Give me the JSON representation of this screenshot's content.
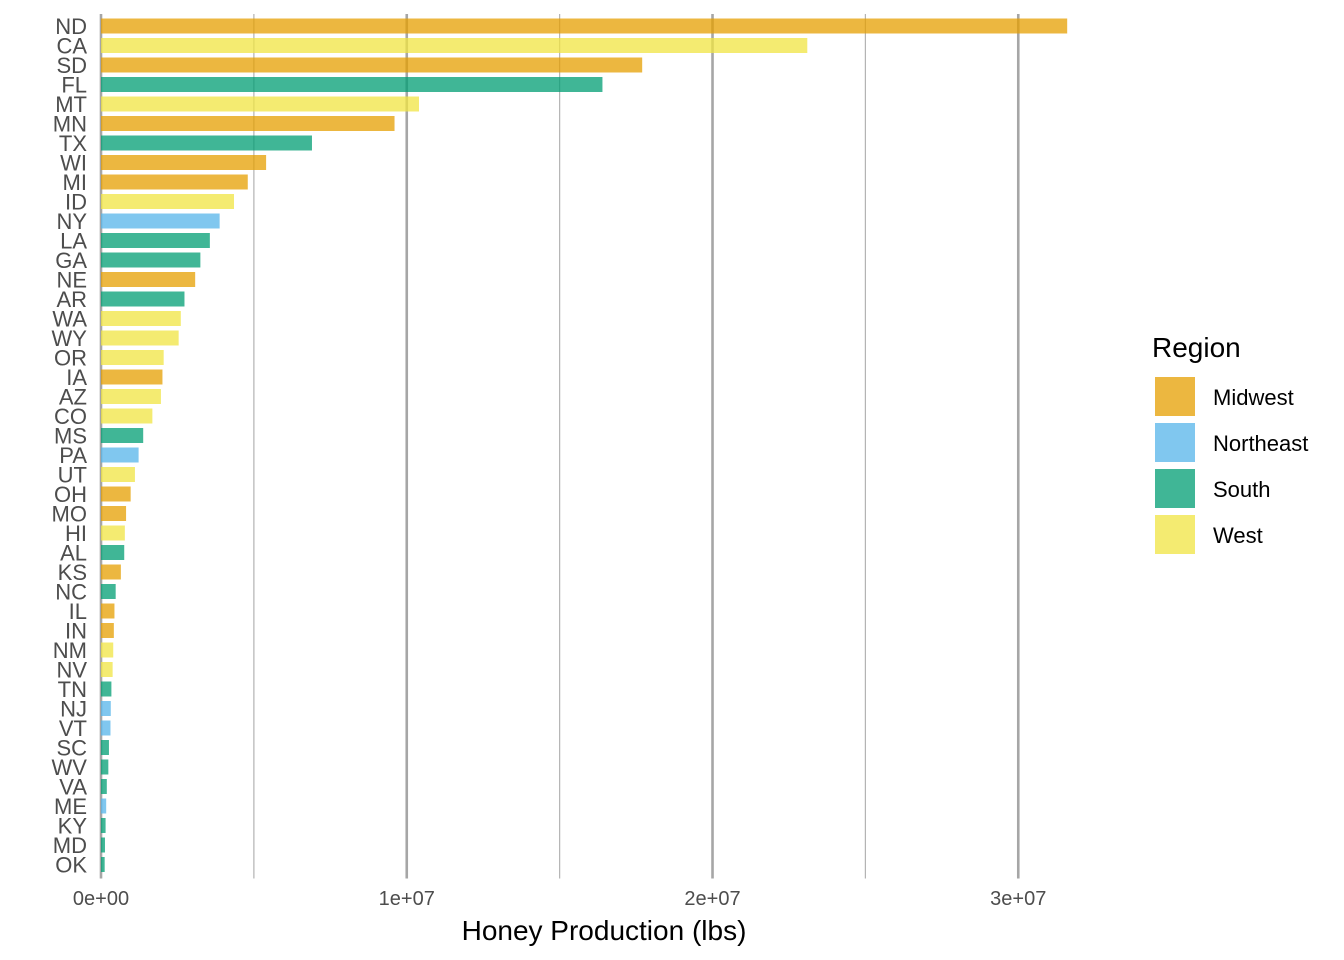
{
  "chart_data": {
    "type": "bar",
    "orientation": "horizontal",
    "xlabel": "Honey Production (lbs)",
    "ylabel": "",
    "xlim": [
      0,
      33000000
    ],
    "x_ticks": [
      {
        "value": 0,
        "label": "0e+00"
      },
      {
        "value": 10000000,
        "label": "1e+07"
      },
      {
        "value": 20000000,
        "label": "2e+07"
      },
      {
        "value": 30000000,
        "label": "3e+07"
      }
    ],
    "x_minor_ticks": [
      5000000,
      15000000,
      25000000
    ],
    "grid": "vertical",
    "legend": {
      "title": "Region",
      "placement": "right",
      "entries": [
        {
          "name": "Midwest",
          "color": "#E69F00"
        },
        {
          "name": "Northeast",
          "color": "#56B4E9"
        },
        {
          "name": "South",
          "color": "#009E73"
        },
        {
          "name": "West",
          "color": "#F0E442"
        }
      ]
    },
    "bar_opacity": 0.75,
    "bars": [
      {
        "state": "ND",
        "region": "Midwest",
        "value": 31600000
      },
      {
        "state": "CA",
        "region": "West",
        "value": 23100000
      },
      {
        "state": "SD",
        "region": "Midwest",
        "value": 17700000
      },
      {
        "state": "FL",
        "region": "South",
        "value": 16400000
      },
      {
        "state": "MT",
        "region": "West",
        "value": 10400000
      },
      {
        "state": "MN",
        "region": "Midwest",
        "value": 9600000
      },
      {
        "state": "TX",
        "region": "South",
        "value": 6900000
      },
      {
        "state": "WI",
        "region": "Midwest",
        "value": 5400000
      },
      {
        "state": "MI",
        "region": "Midwest",
        "value": 4800000
      },
      {
        "state": "ID",
        "region": "West",
        "value": 4350000
      },
      {
        "state": "NY",
        "region": "Northeast",
        "value": 3880000
      },
      {
        "state": "LA",
        "region": "South",
        "value": 3560000
      },
      {
        "state": "GA",
        "region": "South",
        "value": 3250000
      },
      {
        "state": "NE",
        "region": "Midwest",
        "value": 3080000
      },
      {
        "state": "AR",
        "region": "South",
        "value": 2730000
      },
      {
        "state": "WA",
        "region": "West",
        "value": 2610000
      },
      {
        "state": "WY",
        "region": "West",
        "value": 2540000
      },
      {
        "state": "OR",
        "region": "West",
        "value": 2050000
      },
      {
        "state": "IA",
        "region": "Midwest",
        "value": 2010000
      },
      {
        "state": "AZ",
        "region": "West",
        "value": 1960000
      },
      {
        "state": "CO",
        "region": "West",
        "value": 1680000
      },
      {
        "state": "MS",
        "region": "South",
        "value": 1380000
      },
      {
        "state": "PA",
        "region": "Northeast",
        "value": 1230000
      },
      {
        "state": "UT",
        "region": "West",
        "value": 1110000
      },
      {
        "state": "OH",
        "region": "Midwest",
        "value": 970000
      },
      {
        "state": "MO",
        "region": "Midwest",
        "value": 820000
      },
      {
        "state": "HI",
        "region": "West",
        "value": 780000
      },
      {
        "state": "AL",
        "region": "South",
        "value": 760000
      },
      {
        "state": "KS",
        "region": "Midwest",
        "value": 650000
      },
      {
        "state": "NC",
        "region": "South",
        "value": 480000
      },
      {
        "state": "IL",
        "region": "Midwest",
        "value": 440000
      },
      {
        "state": "IN",
        "region": "Midwest",
        "value": 420000
      },
      {
        "state": "NM",
        "region": "West",
        "value": 400000
      },
      {
        "state": "NV",
        "region": "West",
        "value": 380000
      },
      {
        "state": "TN",
        "region": "South",
        "value": 340000
      },
      {
        "state": "NJ",
        "region": "Northeast",
        "value": 320000
      },
      {
        "state": "VT",
        "region": "Northeast",
        "value": 310000
      },
      {
        "state": "SC",
        "region": "South",
        "value": 260000
      },
      {
        "state": "WV",
        "region": "South",
        "value": 240000
      },
      {
        "state": "VA",
        "region": "South",
        "value": 190000
      },
      {
        "state": "ME",
        "region": "Northeast",
        "value": 170000
      },
      {
        "state": "KY",
        "region": "South",
        "value": 150000
      },
      {
        "state": "MD",
        "region": "South",
        "value": 130000
      },
      {
        "state": "OK",
        "region": "South",
        "value": 120000
      }
    ]
  }
}
